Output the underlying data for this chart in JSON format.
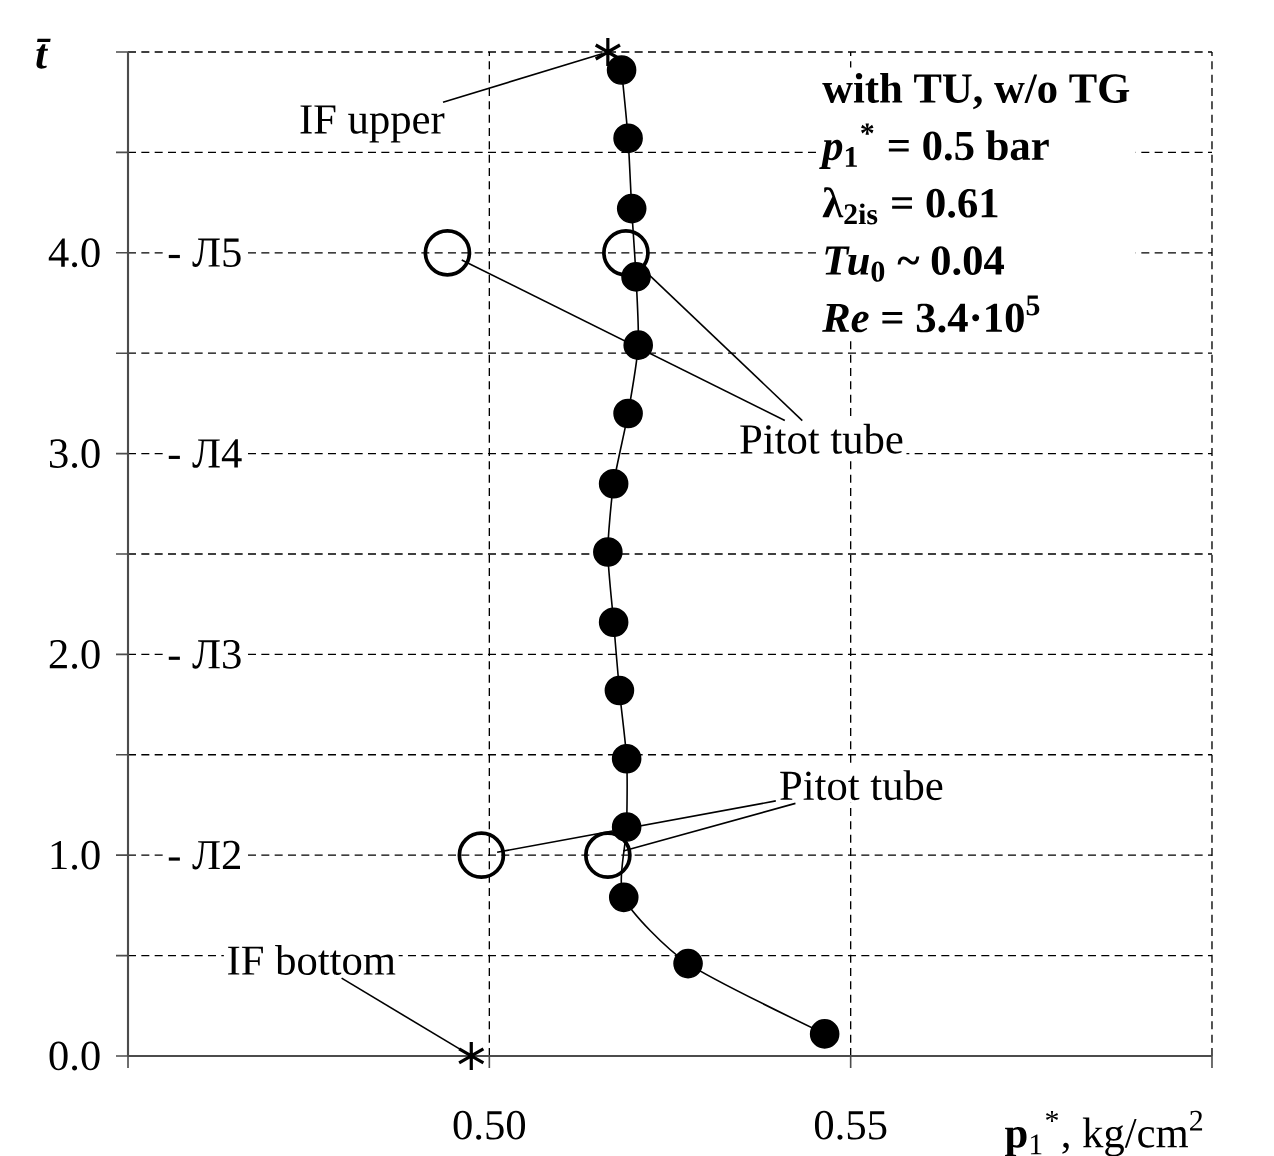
{
  "chart_data": {
    "type": "line",
    "xlabel": "**p**$_{1}$$^{*}$, kg/cm$^{2}$",
    "ylabel": "*t̄*",
    "xlim": [
      0.45,
      0.6
    ],
    "xticks": [
      {
        "value": 0.45,
        "label": null
      },
      {
        "value": 0.5,
        "label": "0.50"
      },
      0.55,
      {
        "value": 0.6,
        "label": null
      }
    ],
    "ylim": [
      0,
      5
    ],
    "yticks": [
      {
        "value": 0,
        "label": "0.0"
      },
      {
        "value": 0.5,
        "label": null
      },
      {
        "value": 1,
        "label": "1.0"
      },
      {
        "value": 1.5,
        "label": null
      },
      {
        "value": 2,
        "label": "2.0"
      },
      {
        "value": 2.5,
        "label": null
      },
      {
        "value": 3,
        "label": "3.0"
      },
      {
        "value": 3.5,
        "label": null
      },
      {
        "value": 4,
        "label": "4.0"
      },
      {
        "value": 4.5,
        "label": null
      },
      {
        "value": 5,
        "label": null
      }
    ],
    "grid": true,
    "series": [
      {
        "color": "#000000",
        "marker": "circle",
        "line_style": "solid",
        "x": [
          0.5183,
          0.5192,
          0.5197,
          0.5203,
          0.5206,
          0.5192,
          0.5172,
          0.5164,
          0.5172,
          0.518,
          0.519,
          0.519,
          0.5186,
          0.5275,
          0.5464
        ],
        "values": [
          4.91,
          4.57,
          4.22,
          3.88,
          3.54,
          3.2,
          2.85,
          2.51,
          2.16,
          1.82,
          1.48,
          1.14,
          0.79,
          0.46,
          0.11
        ]
      },
      {
        "type": "scatter",
        "color": "#000000",
        "marker": "circle",
        "x": [
          0.4942,
          0.5189,
          0.4989,
          0.5164
        ],
        "values": [
          4.0,
          4.0,
          1.0,
          1.0
        ]
      },
      {
        "type": "scatter",
        "color": "#000000",
        "marker": "cross",
        "x": [
          0.5164,
          0.4975
        ],
        "values": [
          5.0,
          0.0
        ]
      }
    ],
    "annotations": [
      {
        "text": "IF upper",
        "x": 0.5164,
        "y": 5.0
      },
      {
        "text": "IF bottom",
        "x": 0.4975,
        "y": 0.0
      },
      {
        "text": "Pitot tube",
        "x": 0.4942,
        "y": 4.0
      },
      {
        "text": "Pitot tube",
        "x": 0.4989,
        "y": 1.0
      },
      "- Л5",
      "- Л4",
      "- Л3",
      "- Л2",
      "with TU, w/o TG",
      "*p*$_{1}$$^{*}$ = 0.5 bar",
      "λ$_{2is}$ = 0.61",
      "*Tu*$_{0}$ ~ 0.04",
      "*Re* = 3.4·10$^{5}$"
    ]
  }
}
